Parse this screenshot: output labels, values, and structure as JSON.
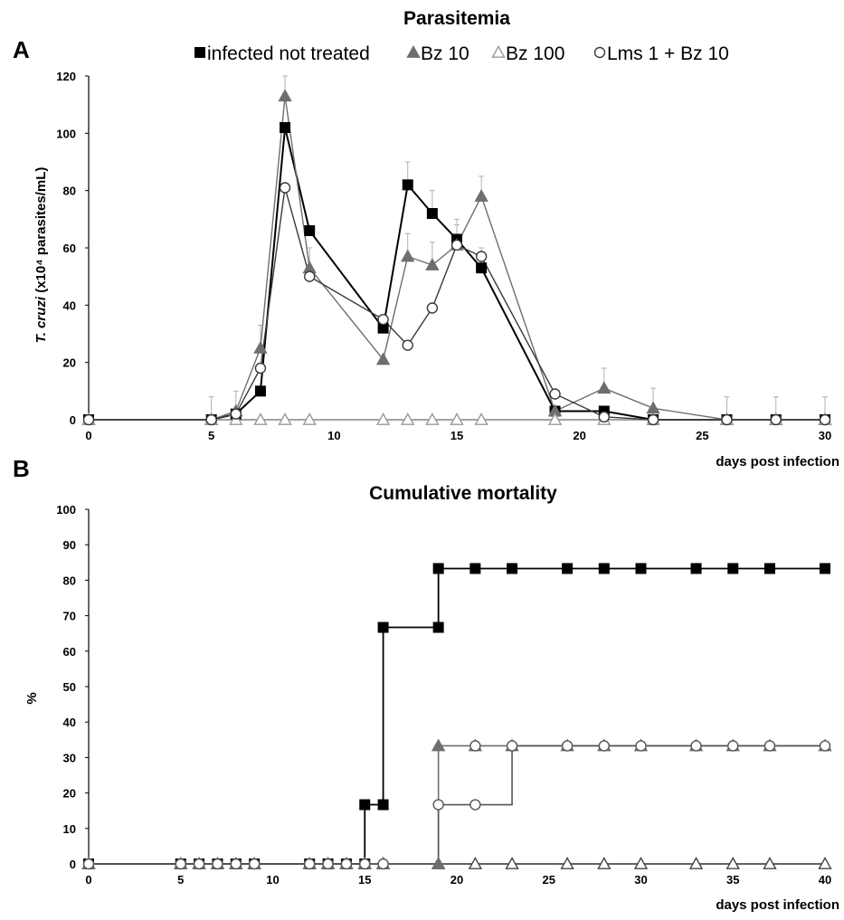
{
  "chart_data": [
    {
      "panel": "A",
      "type": "line",
      "title": "Parasitemia",
      "xlabel": "days post infection",
      "ylabel_italic": "T. cruzi",
      "ylabel_rest": " (x10⁴ parasites/mL)",
      "xlim": [
        0,
        30
      ],
      "ylim": [
        0,
        120
      ],
      "xticks": [
        0,
        5,
        10,
        15,
        20,
        25,
        30
      ],
      "yticks": [
        0,
        20,
        40,
        60,
        80,
        100,
        120
      ],
      "legend_position": "top",
      "series": [
        {
          "name": "infected not treated",
          "marker": "square-filled",
          "color": "#000000",
          "x": [
            0,
            5,
            6,
            7,
            8,
            9,
            12,
            13,
            14,
            15,
            16,
            19,
            21,
            23,
            26,
            28,
            30
          ],
          "y": [
            0,
            0,
            2,
            10,
            102,
            66,
            32,
            82,
            72,
            63,
            53,
            3,
            3,
            0,
            0,
            0,
            0
          ],
          "err": [
            0,
            0,
            0,
            0,
            0,
            0,
            0,
            8,
            8,
            7,
            7,
            0,
            0,
            0,
            0,
            0,
            0
          ]
        },
        {
          "name": "Bz 10",
          "marker": "triangle-filled",
          "color": "#6e6e6e",
          "x": [
            0,
            5,
            6,
            7,
            8,
            9,
            12,
            13,
            14,
            15,
            16,
            19,
            21,
            23,
            26,
            28,
            30
          ],
          "y": [
            0,
            0,
            3,
            25,
            113,
            53,
            21,
            57,
            54,
            61,
            78,
            3,
            11,
            4,
            0,
            0,
            0
          ],
          "err": [
            0,
            8,
            7,
            8,
            7,
            7,
            0,
            8,
            8,
            7,
            7,
            0,
            7,
            7,
            8,
            8,
            8
          ]
        },
        {
          "name": "Bz 100",
          "marker": "triangle-open",
          "color": "#9a9a9a",
          "x": [
            0,
            5,
            6,
            7,
            8,
            9,
            12,
            13,
            14,
            15,
            16,
            19,
            21,
            23,
            26,
            28,
            30
          ],
          "y": [
            0,
            0,
            0,
            0,
            0,
            0,
            0,
            0,
            0,
            0,
            0,
            0,
            0,
            0,
            0,
            0,
            0
          ],
          "err": []
        },
        {
          "name": "Lms 1 + Bz 10",
          "marker": "circle-open",
          "color": "#3a3a3a",
          "x": [
            0,
            5,
            6,
            7,
            8,
            9,
            12,
            13,
            14,
            15,
            16,
            19,
            21,
            23,
            26,
            28,
            30
          ],
          "y": [
            0,
            0,
            2,
            18,
            81,
            50,
            35,
            26,
            39,
            61,
            57,
            9,
            1,
            0,
            0,
            0,
            0
          ],
          "err": []
        }
      ]
    },
    {
      "panel": "B",
      "type": "line",
      "title": "Cumulative mortality",
      "xlabel": "days post infection",
      "ylabel": "%",
      "xlim": [
        0,
        40
      ],
      "ylim": [
        0,
        100
      ],
      "xticks": [
        0,
        5,
        10,
        15,
        20,
        25,
        30,
        35,
        40
      ],
      "yticks": [
        0,
        10,
        20,
        30,
        40,
        50,
        60,
        70,
        80,
        90,
        100
      ],
      "step": true,
      "series": [
        {
          "name": "infected not treated",
          "marker": "square-filled",
          "color": "#000000",
          "x": [
            0,
            5,
            6,
            7,
            8,
            9,
            12,
            13,
            14,
            15,
            16,
            19,
            21,
            23,
            26,
            28,
            30,
            33,
            35,
            37,
            40
          ],
          "y": [
            0,
            0,
            0,
            0,
            0,
            0,
            0,
            0,
            0,
            16.7,
            66.7,
            83.3,
            83.3,
            83.3,
            83.3,
            83.3,
            83.3,
            83.3,
            83.3,
            83.3,
            83.3
          ],
          "extra_points": [
            [
              15,
              0
            ],
            [
              16,
              16.7
            ],
            [
              19,
              66.7
            ]
          ]
        },
        {
          "name": "Bz 10",
          "marker": "triangle-filled",
          "color": "#6e6e6e",
          "x": [
            0,
            5,
            6,
            7,
            8,
            9,
            12,
            13,
            14,
            15,
            16,
            19,
            21,
            23,
            26,
            28,
            30,
            33,
            35,
            37,
            40
          ],
          "y": [
            0,
            0,
            0,
            0,
            0,
            0,
            0,
            0,
            0,
            0,
            0,
            33.3,
            33.3,
            33.3,
            33.3,
            33.3,
            33.3,
            33.3,
            33.3,
            33.3,
            33.3
          ],
          "extra_points": [
            [
              19,
              0
            ]
          ]
        },
        {
          "name": "Bz 100",
          "marker": "triangle-open",
          "color": "#444444",
          "x": [
            0,
            5,
            6,
            7,
            8,
            9,
            12,
            13,
            14,
            15,
            16,
            19,
            21,
            23,
            26,
            28,
            30,
            33,
            35,
            37,
            40
          ],
          "y": [
            0,
            0,
            0,
            0,
            0,
            0,
            0,
            0,
            0,
            0,
            0,
            0,
            0,
            0,
            0,
            0,
            0,
            0,
            0,
            0,
            0
          ],
          "extra_points": []
        },
        {
          "name": "Lms 1 + Bz 10",
          "marker": "circle-open",
          "color": "#555555",
          "x": [
            0,
            5,
            6,
            7,
            8,
            9,
            12,
            13,
            14,
            15,
            16,
            19,
            21,
            23,
            26,
            28,
            30,
            33,
            35,
            37,
            40
          ],
          "y": [
            0,
            0,
            0,
            0,
            0,
            0,
            0,
            0,
            0,
            0,
            0,
            16.7,
            16.7,
            33.3,
            33.3,
            33.3,
            33.3,
            33.3,
            33.3,
            33.3,
            33.3
          ],
          "extra_points": [
            [
              21,
              33.3
            ]
          ]
        }
      ]
    }
  ]
}
